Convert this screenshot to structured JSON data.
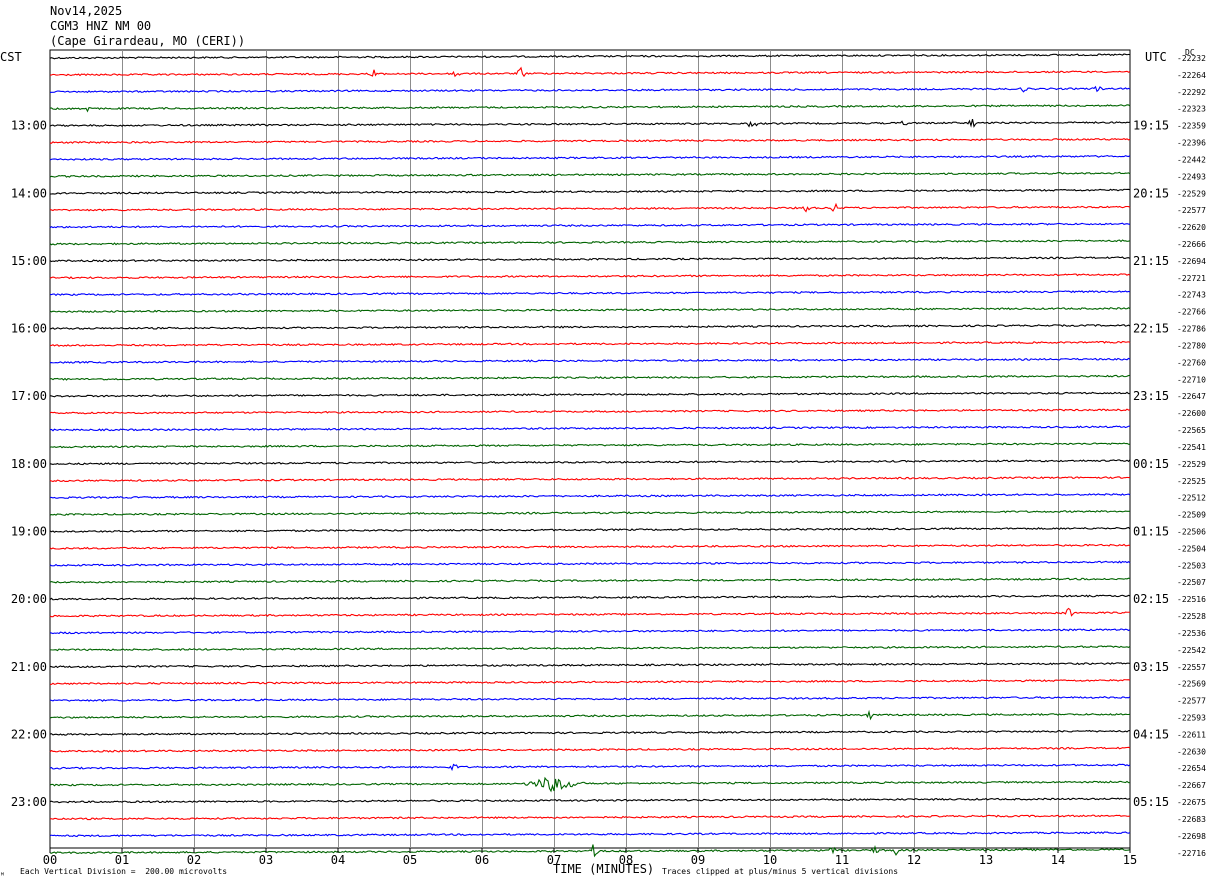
{
  "header": {
    "date": "Nov14,2025",
    "station": "CGM3 HNZ NM 00",
    "location": "(Cape Girardeau, MO (CERI))"
  },
  "labels": {
    "left_zone": "CST",
    "right_zone": "UTC",
    "dc_header": "DC"
  },
  "footer": {
    "vertical_division": "Each Vertical Division =  200.00 microvolts",
    "xlabel": "TIME (MINUTES)",
    "clip_note": "Traces clipped at plus/minus 5 vertical divisions",
    "corner_mark": "ᴹ"
  },
  "chart_data": {
    "type": "line",
    "title": "",
    "xlabel": "TIME (MINUTES)",
    "xlim": [
      0,
      15
    ],
    "x_ticks": [
      "00",
      "01",
      "02",
      "03",
      "04",
      "05",
      "06",
      "07",
      "08",
      "09",
      "10",
      "11",
      "12",
      "13",
      "14",
      "15"
    ],
    "trace_colors": [
      "#000000",
      "#ff0000",
      "#0000ff",
      "#006400"
    ],
    "trace_count": 48,
    "left_hour_labels": [
      "13:00",
      "14:00",
      "15:00",
      "16:00",
      "17:00",
      "18:00",
      "19:00",
      "20:00",
      "21:00",
      "22:00",
      "23:00"
    ],
    "right_hour_labels": [
      "19:15",
      "20:15",
      "21:15",
      "22:15",
      "23:15",
      "00:15",
      "01:15",
      "02:15",
      "03:15",
      "04:15",
      "05:15"
    ],
    "dc_offsets": [
      "-22232",
      "-22264",
      "-22292",
      "-22323",
      "-22359",
      "-22396",
      "-22442",
      "-22493",
      "-22529",
      "-22577",
      "-22620",
      "-22666",
      "-22694",
      "-22721",
      "-22743",
      "-22766",
      "-22786",
      "-22780",
      "-22760",
      "-22710",
      "-22647",
      "-22600",
      "-22565",
      "-22541",
      "-22529",
      "-22525",
      "-22512",
      "-22509",
      "-22506",
      "-22504",
      "-22503",
      "-22507",
      "-22516",
      "-22528",
      "-22536",
      "-22542",
      "-22557",
      "-22569",
      "-22577",
      "-22593",
      "-22611",
      "-22630",
      "-22654",
      "-22667",
      "-22675",
      "-22683",
      "-22698",
      "-22716"
    ],
    "events": [
      {
        "trace": 1,
        "minute": 4.5,
        "amp": 6
      },
      {
        "trace": 1,
        "minute": 5.65,
        "amp": 7
      },
      {
        "trace": 1,
        "minute": 6.55,
        "amp": 7
      },
      {
        "trace": 2,
        "minute": 13.5,
        "amp": 4
      },
      {
        "trace": 2,
        "minute": 14.55,
        "amp": 5
      },
      {
        "trace": 3,
        "minute": 0.55,
        "amp": 5
      },
      {
        "trace": 4,
        "minute": 9.75,
        "amp": 7
      },
      {
        "trace": 4,
        "minute": 11.85,
        "amp": 4
      },
      {
        "trace": 4,
        "minute": 12.8,
        "amp": 5
      },
      {
        "trace": 9,
        "minute": 10.5,
        "amp": 5
      },
      {
        "trace": 9,
        "minute": 10.9,
        "amp": 6
      },
      {
        "trace": 33,
        "minute": 14.15,
        "amp": 6
      },
      {
        "trace": 39,
        "minute": 11.4,
        "amp": 5
      },
      {
        "trace": 42,
        "minute": 5.6,
        "amp": 4
      },
      {
        "trace": 43,
        "minute": 7.0,
        "amp": 8
      },
      {
        "trace": 47,
        "minute": 7.55,
        "amp": 7
      },
      {
        "trace": 47,
        "minute": 10.85,
        "amp": 5
      },
      {
        "trace": 47,
        "minute": 11.45,
        "amp": 5
      },
      {
        "trace": 47,
        "minute": 11.75,
        "amp": 5
      }
    ]
  }
}
